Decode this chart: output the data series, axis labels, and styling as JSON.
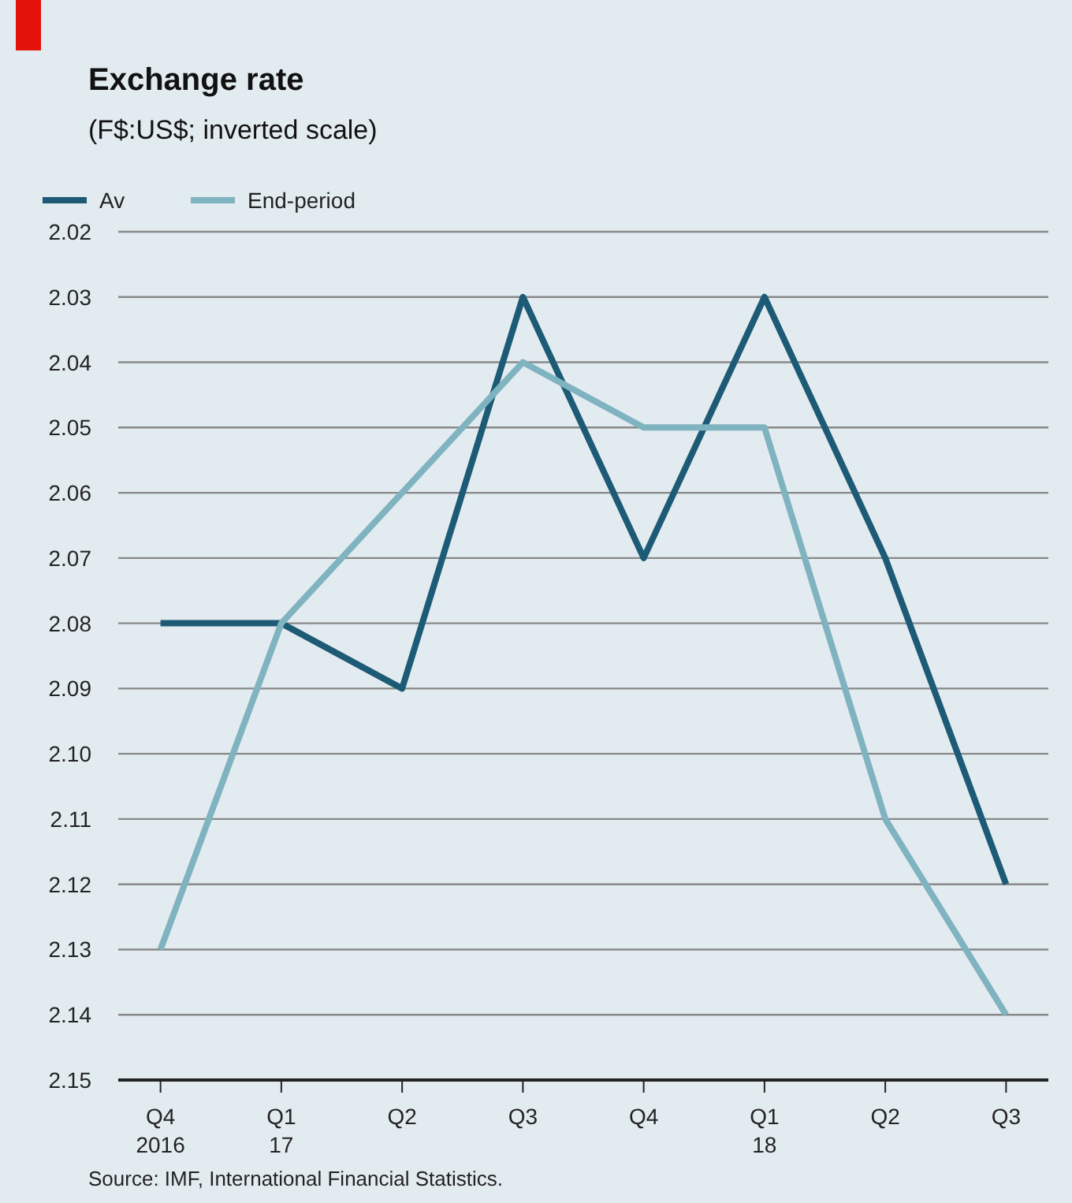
{
  "chart_data": {
    "type": "line",
    "title": "Exchange rate",
    "subtitle": "(F$:US$; inverted scale)",
    "categories": [
      "Q4\n2016",
      "Q1\n17",
      "Q2",
      "Q3",
      "Q4",
      "Q1\n18",
      "Q2",
      "Q3"
    ],
    "series": [
      {
        "name": "Av",
        "color": "#1d5a75",
        "values": [
          2.08,
          2.08,
          2.09,
          2.03,
          2.07,
          2.03,
          2.07,
          2.12
        ]
      },
      {
        "name": "End-period",
        "color": "#7fb3bf",
        "values": [
          2.13,
          2.08,
          2.06,
          2.04,
          2.05,
          2.05,
          2.11,
          2.14
        ]
      }
    ],
    "ylim": [
      2.15,
      2.02
    ],
    "yticks": [
      2.02,
      2.03,
      2.04,
      2.05,
      2.06,
      2.07,
      2.08,
      2.09,
      {
        "value": 2.1,
        "label": "2.10"
      },
      2.11,
      2.12,
      2.13,
      2.14,
      2.15
    ],
    "grid": "y",
    "legend": "top left",
    "marker": "none",
    "line_style": "solid",
    "annotations": [
      "Source: IMF, International Financial Statistics."
    ]
  }
}
